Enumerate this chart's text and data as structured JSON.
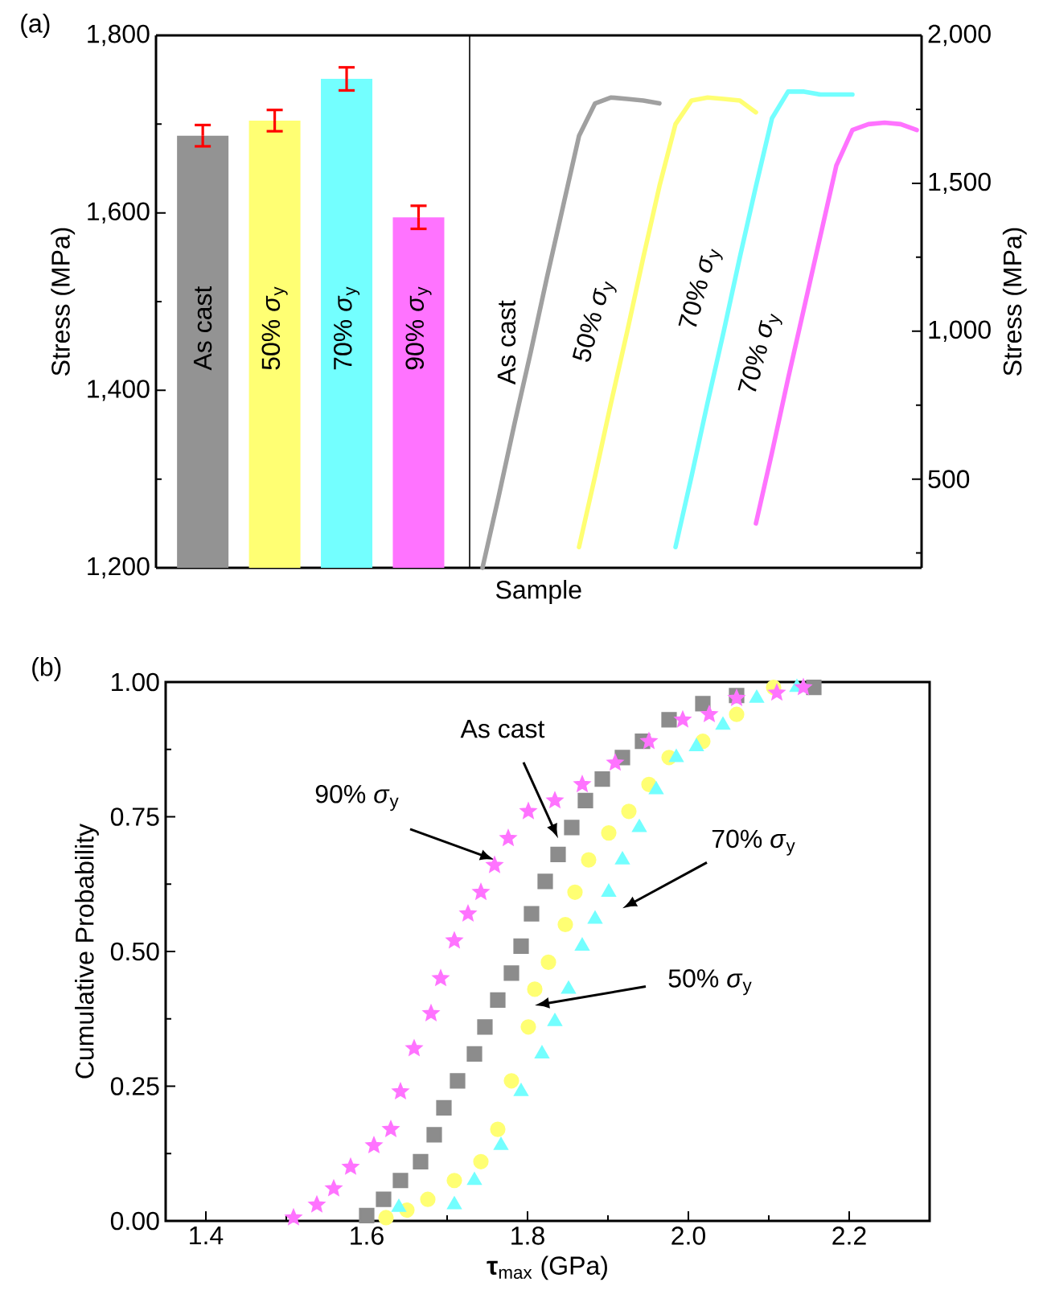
{
  "chart_data": [
    {
      "type": "bar",
      "title": "(a)",
      "xlabel": "Sample",
      "ylabel": "Stress (MPa)",
      "categories": [
        "As cast",
        "50% *σ*$_{y}$",
        "70% *σ*$_{y}$",
        "90% *σ*$_{y}$"
      ],
      "values": [
        1687,
        1704,
        1751,
        1595
      ],
      "errors": [
        12,
        12,
        13,
        13
      ],
      "colors": [
        "#939393",
        "#ffff73",
        "#73ffff",
        "#ff73ff"
      ],
      "ylim": [
        1200,
        1800
      ],
      "yticks": [
        {
          "value": 1200,
          "label": "1,200"
        },
        {
          "value": 1300,
          "label": null
        },
        {
          "value": 1400,
          "label": "1,400"
        },
        {
          "value": 1500,
          "label": null
        },
        {
          "value": 1600,
          "label": "1,600"
        },
        {
          "value": 1700,
          "label": null
        },
        {
          "value": 1800,
          "label": "1,800"
        }
      ]
    },
    {
      "type": "line",
      "ylabel": "Stress (MPa)",
      "categories": [
        null,
        null,
        null,
        null,
        null,
        null,
        null,
        null,
        null,
        null,
        null,
        null,
        null,
        null,
        null,
        null,
        null,
        null,
        null,
        null,
        null,
        null,
        null,
        null,
        null,
        null,
        null,
        null
      ],
      "ylim": [
        200,
        2000
      ],
      "yticks": [
        {
          "value": 250,
          "label": null
        },
        500,
        {
          "value": 750,
          "label": null
        },
        {
          "value": 1000,
          "label": "1,000"
        },
        {
          "value": 1250,
          "label": null
        },
        {
          "value": 1500,
          "label": "1,500"
        },
        {
          "value": 1750,
          "label": null
        },
        {
          "value": 2000,
          "label": "2,000"
        }
      ],
      "series": [
        {
          "name": "As cast",
          "color": "#a0a0a0",
          "values": [
            200,
            440,
            690,
            930,
            1180,
            1420,
            1660,
            1770,
            1790,
            1785,
            1780,
            1770,
            null,
            null,
            null,
            null,
            null,
            null,
            null,
            null,
            null,
            null,
            null,
            null,
            null,
            null,
            null,
            null
          ]
        },
        {
          "name": "50% *σ*$_{y}$",
          "color": "#ffff73",
          "values": [
            null,
            null,
            null,
            null,
            null,
            null,
            270,
            510,
            760,
            1000,
            1250,
            1490,
            1700,
            1780,
            1790,
            1785,
            1780,
            1740,
            null,
            null,
            null,
            null,
            null,
            null,
            null,
            null,
            null,
            null
          ]
        },
        {
          "name": "70% *σ*$_{y}$",
          "color": "#73ffff",
          "values": [
            null,
            null,
            null,
            null,
            null,
            null,
            null,
            null,
            null,
            null,
            null,
            null,
            270,
            510,
            760,
            1000,
            1250,
            1490,
            1720,
            1810,
            1810,
            1800,
            1800,
            1800,
            null,
            null,
            null,
            null
          ]
        },
        {
          "name": "70% *σ*$_{y}$",
          "color": "#ff73ff",
          "values": [
            null,
            null,
            null,
            null,
            null,
            null,
            null,
            null,
            null,
            null,
            null,
            null,
            null,
            null,
            null,
            null,
            null,
            350,
            590,
            840,
            1080,
            1320,
            1560,
            1680,
            1700,
            1705,
            1700,
            1680
          ]
        }
      ]
    },
    {
      "type": "scatter",
      "title": "(b)",
      "xlabel": "**τ**$_{max}$ (GPa)",
      "ylabel": "Cumulative Probability",
      "xlim": [
        1.35,
        2.3
      ],
      "xticks": [
        1.4,
        {
          "value": 1.5,
          "label": null
        },
        1.6,
        {
          "value": 1.7,
          "label": null
        },
        1.8,
        {
          "value": 1.9,
          "label": null
        },
        {
          "value": 2.0,
          "label": "2.0"
        },
        {
          "value": 2.1,
          "label": null
        },
        2.2
      ],
      "ylim": [
        0,
        1
      ],
      "yticks": [
        {
          "value": 0,
          "label": "0.00"
        },
        {
          "value": 0.125,
          "label": null
        },
        {
          "value": 0.25,
          "label": "0.25"
        },
        {
          "value": 0.375,
          "label": null
        },
        {
          "value": 0.5,
          "label": "0.50"
        },
        {
          "value": 0.625,
          "label": null
        },
        {
          "value": 0.75,
          "label": "0.75"
        },
        {
          "value": 0.875,
          "label": null
        },
        {
          "value": 1,
          "label": "1.00"
        }
      ],
      "series": [
        {
          "name": "As cast",
          "color": "#8c8c8c",
          "marker": "square",
          "x": [
            1.6,
            1.621,
            1.642,
            1.667,
            1.684,
            1.696,
            1.713,
            1.734,
            1.747,
            1.763,
            1.78,
            1.792,
            1.805,
            1.822,
            1.838,
            1.855,
            1.872,
            1.893,
            1.918,
            1.943,
            1.976,
            2.018,
            2.06,
            2.156
          ],
          "values": [
            0.01,
            0.04,
            0.075,
            0.11,
            0.16,
            0.21,
            0.26,
            0.31,
            0.36,
            0.41,
            0.46,
            0.51,
            0.57,
            0.63,
            0.68,
            0.73,
            0.78,
            0.82,
            0.86,
            0.89,
            0.93,
            0.96,
            0.975,
            0.99
          ]
        },
        {
          "name": "50% *σ*$_{y}$",
          "color": "#ffff73",
          "marker": "circle",
          "x": [
            1.624,
            1.65,
            1.676,
            1.709,
            1.742,
            1.763,
            1.78,
            1.801,
            1.809,
            1.826,
            1.847,
            1.859,
            1.876,
            1.901,
            1.926,
            1.951,
            1.976,
            2.018,
            2.06,
            2.106
          ],
          "values": [
            0.006,
            0.02,
            0.04,
            0.075,
            0.11,
            0.17,
            0.26,
            0.36,
            0.43,
            0.48,
            0.55,
            0.61,
            0.67,
            0.72,
            0.76,
            0.81,
            0.86,
            0.89,
            0.94,
            0.99
          ]
        },
        {
          "name": "70% *σ*$_{y}$",
          "color": "#73ffff",
          "marker": "triangle",
          "x": [
            1.64,
            1.709,
            1.734,
            1.767,
            1.792,
            1.818,
            1.834,
            1.851,
            1.868,
            1.884,
            1.901,
            1.918,
            1.939,
            1.96,
            1.985,
            2.01,
            2.043,
            2.085,
            2.135
          ],
          "values": [
            0.025,
            0.03,
            0.075,
            0.14,
            0.24,
            0.31,
            0.37,
            0.43,
            0.51,
            0.56,
            0.61,
            0.67,
            0.73,
            0.8,
            0.86,
            0.88,
            0.92,
            0.97,
            0.99
          ]
        },
        {
          "name": "90% *σ*$_{y}$",
          "color": "#ff73ff",
          "marker": "star",
          "x": [
            1.509,
            1.538,
            1.559,
            1.58,
            1.609,
            1.63,
            1.642,
            1.659,
            1.68,
            1.692,
            1.709,
            1.726,
            1.742,
            1.759,
            1.776,
            1.801,
            1.834,
            1.868,
            1.909,
            1.951,
            1.993,
            2.026,
            2.06,
            2.11,
            2.143
          ],
          "values": [
            0.006,
            0.03,
            0.06,
            0.1,
            0.14,
            0.17,
            0.24,
            0.32,
            0.385,
            0.45,
            0.52,
            0.57,
            0.61,
            0.66,
            0.71,
            0.76,
            0.78,
            0.81,
            0.85,
            0.89,
            0.93,
            0.94,
            0.97,
            0.98,
            0.99
          ]
        }
      ]
    }
  ]
}
